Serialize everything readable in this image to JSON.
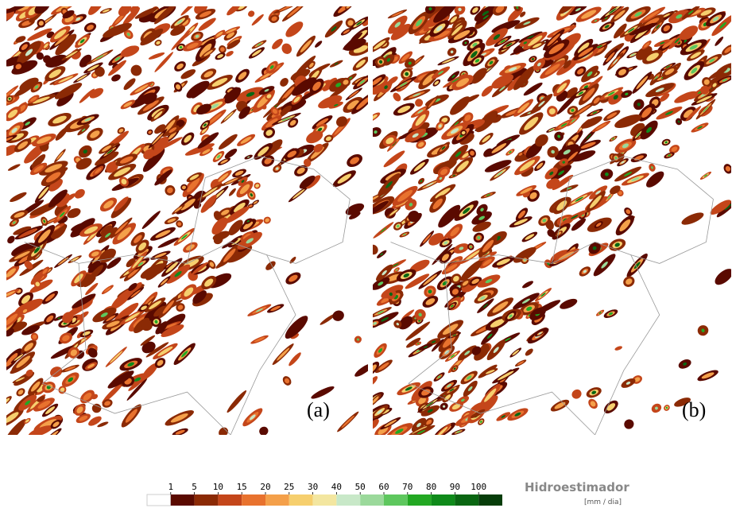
{
  "panels": [
    {
      "label": "(a)"
    },
    {
      "label": "(b)"
    }
  ],
  "legend": {
    "ticks": [
      1,
      5,
      10,
      15,
      20,
      25,
      30,
      40,
      50,
      60,
      70,
      80,
      90,
      100
    ],
    "colors": [
      "#ffffff",
      "#5a0a00",
      "#8b2a05",
      "#c4461a",
      "#e8722e",
      "#f4a04a",
      "#f6cf6e",
      "#f3e6a0",
      "#c8e8c8",
      "#9bd99b",
      "#5ec75e",
      "#23a823",
      "#0f8a1a",
      "#0a6612",
      "#063d0a"
    ],
    "title": "Hidroestimador",
    "unit": "[mm / dia]"
  }
}
